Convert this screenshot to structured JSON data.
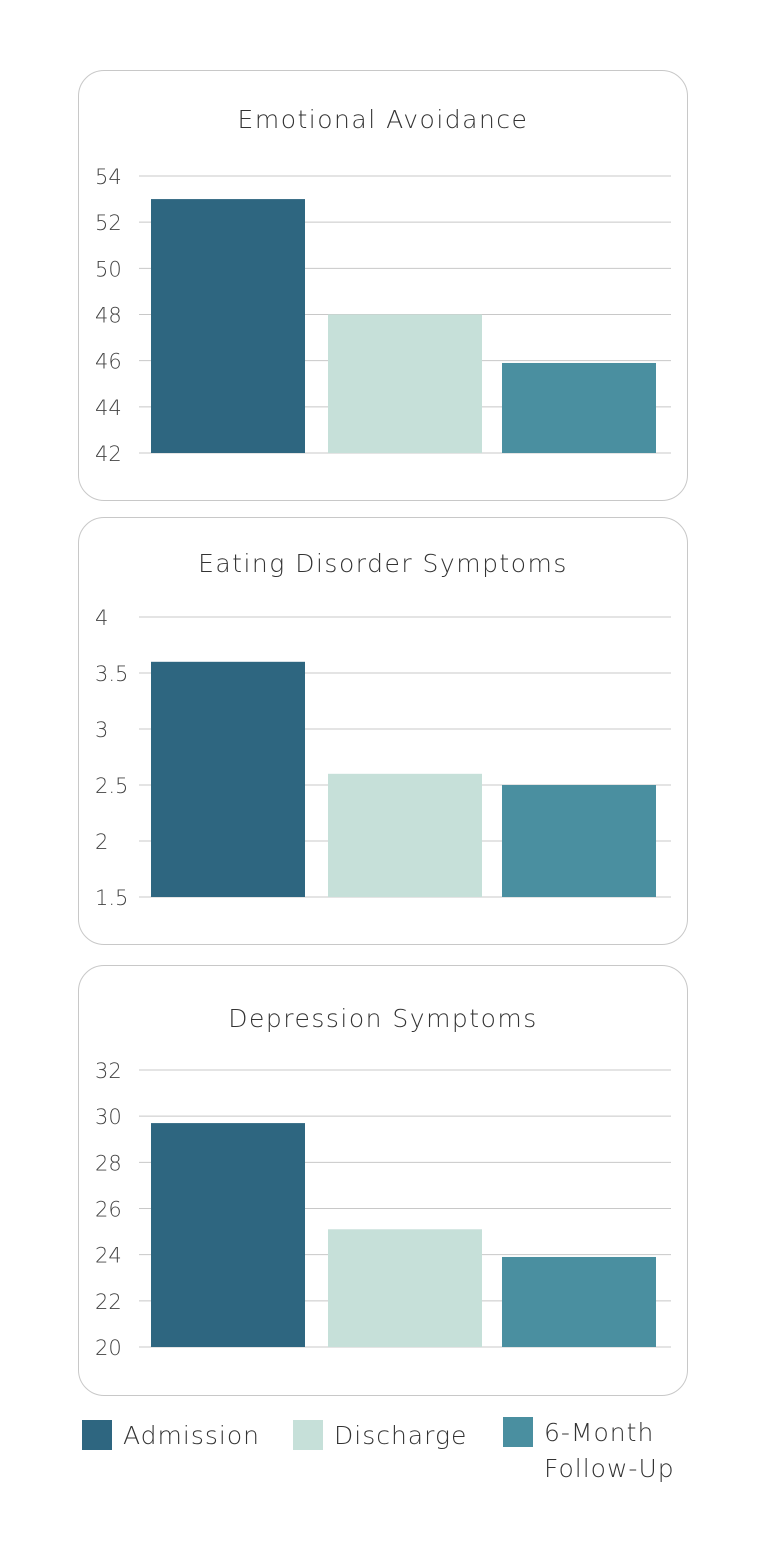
{
  "chart_data": [
    {
      "type": "bar",
      "title": "Emotional Avoidance",
      "categories": [
        "Admission",
        "Discharge",
        "6-Month Follow-Up"
      ],
      "values": [
        53.0,
        48.0,
        45.9
      ],
      "ylim": [
        42,
        54
      ],
      "yticks": [
        "42",
        "44",
        "46",
        "48",
        "50",
        "52",
        "54"
      ],
      "grid": true
    },
    {
      "type": "bar",
      "title": "Eating Disorder Symptoms",
      "categories": [
        "Admission",
        "Discharge",
        "6-Month Follow-Up"
      ],
      "values": [
        3.6,
        2.6,
        2.5
      ],
      "ylim": [
        1.5,
        4
      ],
      "yticks": [
        "1.5",
        "2",
        "2.5",
        "3",
        "3.5",
        "4"
      ],
      "grid": true
    },
    {
      "type": "bar",
      "title": "Depression Symptoms",
      "categories": [
        "Admission",
        "Discharge",
        "6-Month Follow-Up"
      ],
      "values": [
        29.7,
        25.1,
        23.9
      ],
      "ylim": [
        20,
        32
      ],
      "yticks": [
        "20",
        "22",
        "24",
        "26",
        "28",
        "30",
        "32"
      ],
      "grid": true
    }
  ],
  "legend": {
    "placement": "bottom",
    "items": [
      {
        "label": "Admission",
        "color": "#2e6680"
      },
      {
        "label": "Discharge",
        "color": "#c6e0d9"
      },
      {
        "label_line1": "6-Month",
        "label_line2": "Follow-Up",
        "color": "#4a8fa0"
      }
    ]
  }
}
